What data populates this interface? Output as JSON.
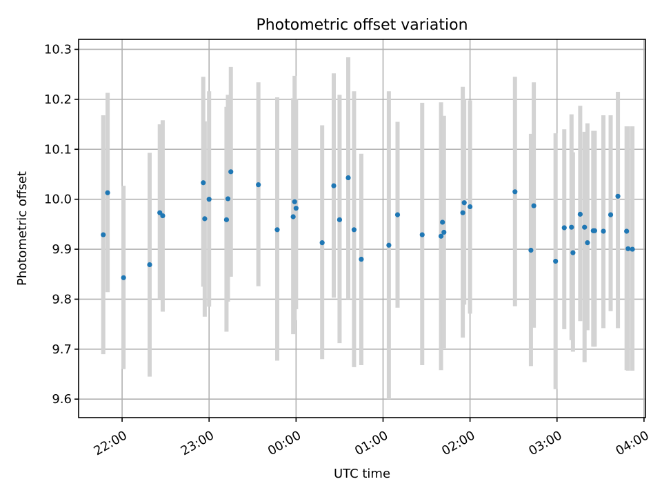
{
  "chart_data": {
    "type": "scatter",
    "title": "Photometric offset variation",
    "xlabel": "UTC time",
    "ylabel": "Photometric offset",
    "x_start": "21:30",
    "x_unit": "minutes_after_start",
    "xlim": [
      0,
      391
    ],
    "ylim": [
      9.563,
      10.32
    ],
    "yticks": [
      9.6,
      9.7,
      9.8,
      9.9,
      10.0,
      10.1,
      10.2,
      10.3
    ],
    "ytick_labels": [
      "9.6",
      "9.7",
      "9.8",
      "9.9",
      "10.0",
      "10.1",
      "10.2",
      "10.3"
    ],
    "xticks": [
      30,
      90,
      150,
      210,
      270,
      330,
      390
    ],
    "xtick_labels": [
      "22:00",
      "23:00",
      "00:00",
      "01:00",
      "02:00",
      "03:00",
      "04:00"
    ],
    "grid": true,
    "colors": {
      "point": "#1f77b4",
      "errorbar": "#d3d3d3",
      "grid": "#b0b0b0"
    },
    "series": [
      {
        "name": "offset",
        "x": [
          17,
          20,
          31,
          49,
          56,
          58,
          86,
          87,
          90,
          102,
          103,
          105,
          124,
          137,
          148,
          149,
          150,
          168,
          176,
          180,
          186,
          190,
          195,
          214,
          220,
          237,
          250,
          251,
          252,
          265,
          266,
          270,
          301,
          312,
          314,
          329,
          335,
          340,
          341,
          346,
          349,
          351,
          355,
          356,
          362,
          367,
          372,
          378,
          379,
          382
        ],
        "y": [
          9.929,
          10.013,
          9.843,
          9.869,
          9.973,
          9.967,
          10.033,
          9.961,
          10.0,
          9.959,
          10.001,
          10.055,
          10.029,
          9.939,
          9.965,
          9.995,
          9.982,
          9.913,
          10.027,
          9.959,
          10.043,
          9.939,
          9.88,
          9.908,
          9.969,
          9.929,
          9.926,
          9.954,
          9.934,
          9.973,
          9.993,
          9.985,
          10.015,
          9.898,
          9.987,
          9.876,
          9.943,
          9.944,
          9.893,
          9.97,
          9.944,
          9.913,
          9.937,
          9.937,
          9.936,
          9.969,
          10.006,
          9.936,
          9.901,
          9.9
        ],
        "yerr_low": [
          9.69,
          9.814,
          9.66,
          9.645,
          9.8,
          9.775,
          9.825,
          9.765,
          9.785,
          9.735,
          9.795,
          9.845,
          9.826,
          9.677,
          9.73,
          9.758,
          9.78,
          9.68,
          9.803,
          9.712,
          9.8,
          9.664,
          9.668,
          9.6,
          9.783,
          9.668,
          9.658,
          9.754,
          9.702,
          9.723,
          9.789,
          9.771,
          9.786,
          9.666,
          9.743,
          9.62,
          9.74,
          9.718,
          9.695,
          9.756,
          9.674,
          9.738,
          9.705,
          9.705,
          9.742,
          9.776,
          9.742,
          9.658,
          9.657,
          9.657
        ],
        "yerr_high": [
          10.168,
          10.213,
          10.027,
          10.093,
          10.15,
          10.158,
          10.245,
          10.156,
          10.216,
          10.185,
          10.209,
          10.265,
          10.234,
          10.204,
          10.202,
          10.247,
          10.201,
          10.148,
          10.252,
          10.209,
          10.284,
          10.216,
          10.091,
          10.216,
          10.155,
          10.193,
          10.194,
          10.156,
          10.167,
          10.225,
          10.2,
          10.198,
          10.245,
          10.131,
          10.234,
          10.132,
          10.14,
          10.17,
          10.094,
          10.187,
          10.135,
          10.152,
          10.137,
          10.137,
          10.168,
          10.168,
          10.215,
          10.146,
          10.146,
          10.146
        ]
      }
    ]
  }
}
